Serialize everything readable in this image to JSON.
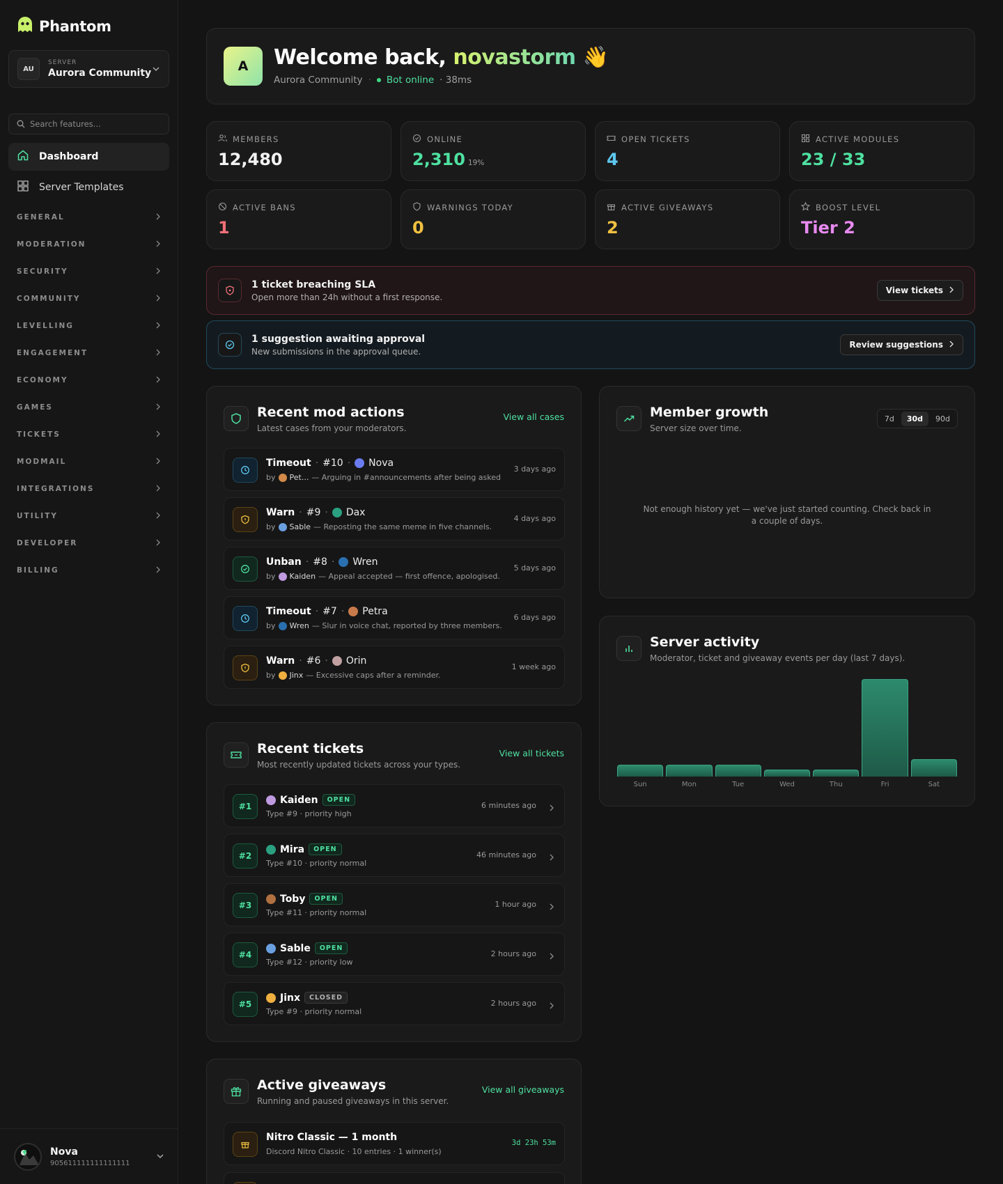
{
  "brand": {
    "name": "Phantom"
  },
  "server": {
    "badge": "AU",
    "caption": "SERVER",
    "name": "Aurora Community"
  },
  "search": {
    "placeholder": "Search features..."
  },
  "nav": {
    "items": [
      {
        "label": "Dashboard",
        "icon": "home-icon",
        "active": true
      },
      {
        "label": "Server Templates",
        "icon": "grid-icon",
        "active": false
      }
    ],
    "sections": [
      "GENERAL",
      "MODERATION",
      "SECURITY",
      "COMMUNITY",
      "LEVELLING",
      "ENGAGEMENT",
      "ECONOMY",
      "GAMES",
      "TICKETS",
      "MODMAIL",
      "INTEGRATIONS",
      "UTILITY",
      "DEVELOPER",
      "BILLING"
    ]
  },
  "user": {
    "name": "Nova",
    "id": "905611111111111111"
  },
  "welcome": {
    "avatar": "A",
    "greeting": "Welcome back,",
    "username": "novastorm",
    "emoji": "👋",
    "server": "Aurora Community",
    "status": "Bot online",
    "latency": "· 38ms"
  },
  "stats": [
    {
      "label": "MEMBERS",
      "value": "12,480",
      "extra": "",
      "icon": "users-icon",
      "color": "#f2f2f2"
    },
    {
      "label": "ONLINE",
      "value": "2,310",
      "extra": "19%",
      "icon": "online-icon",
      "color": "#4ee0a0"
    },
    {
      "label": "OPEN TICKETS",
      "value": "4",
      "extra": "",
      "icon": "ticket-icon",
      "color": "#5ec8f0"
    },
    {
      "label": "ACTIVE MODULES",
      "value": "23 / 33",
      "extra": "",
      "icon": "modules-icon",
      "color": "#4ee0a0"
    },
    {
      "label": "ACTIVE BANS",
      "value": "1",
      "extra": "",
      "icon": "ban-icon",
      "color": "#f07078"
    },
    {
      "label": "WARNINGS TODAY",
      "value": "0",
      "extra": "",
      "icon": "shield-icon",
      "color": "#f0c040"
    },
    {
      "label": "ACTIVE GIVEAWAYS",
      "value": "2",
      "extra": "",
      "icon": "gift-icon",
      "color": "#f0c040"
    },
    {
      "label": "BOOST LEVEL",
      "value": "Tier 2",
      "extra": "",
      "icon": "star-icon",
      "color": "#e88af0"
    }
  ],
  "alerts": {
    "sla": {
      "title": "1 ticket breaching SLA",
      "desc": "Open more than 24h without a first response.",
      "button": "View tickets"
    },
    "suggestion": {
      "title": "1 suggestion awaiting approval",
      "desc": "New submissions in the approval queue.",
      "button": "Review suggestions"
    }
  },
  "mod_actions": {
    "title": "Recent mod actions",
    "subtitle": "Latest cases from your moderators.",
    "link": "View all cases",
    "items": [
      {
        "action": "Timeout",
        "case": "#10",
        "target": "Nova",
        "mod": "Pet...",
        "reason": "— Arguing in #announcements after being asked t...",
        "time": "3 days ago",
        "kind": "timeout",
        "target_color": "#6a7cf0",
        "mod_color": "#d48a4a"
      },
      {
        "action": "Warn",
        "case": "#9",
        "target": "Dax",
        "mod": "Sable",
        "reason": "— Reposting the same meme in five channels.",
        "time": "4 days ago",
        "kind": "warn",
        "target_color": "#2aa080",
        "mod_color": "#6aa0e0"
      },
      {
        "action": "Unban",
        "case": "#8",
        "target": "Wren",
        "mod": "Kaiden",
        "reason": "— Appeal accepted — first offence, apologised.",
        "time": "5 days ago",
        "kind": "unban",
        "target_color": "#2a70b0",
        "mod_color": "#c09ae0"
      },
      {
        "action": "Timeout",
        "case": "#7",
        "target": "Petra",
        "mod": "Wren",
        "reason": "— Slur in voice chat, reported by three members.",
        "time": "6 days ago",
        "kind": "timeout",
        "target_color": "#c87a4a",
        "mod_color": "#2a70b0"
      },
      {
        "action": "Warn",
        "case": "#6",
        "target": "Orin",
        "mod": "Jinx",
        "reason": "— Excessive caps after a reminder.",
        "time": "1 week ago",
        "kind": "warn",
        "target_color": "#c0a0a0",
        "mod_color": "#f0b040"
      }
    ]
  },
  "tickets": {
    "title": "Recent tickets",
    "subtitle": "Most recently updated tickets across your types.",
    "link": "View all tickets",
    "items": [
      {
        "num": "#1",
        "user": "Kaiden",
        "status": "OPEN",
        "meta": "Type #9 · priority high",
        "time": "6 minutes ago",
        "color": "#c09ae0"
      },
      {
        "num": "#2",
        "user": "Mira",
        "status": "OPEN",
        "meta": "Type #10 · priority normal",
        "time": "46 minutes ago",
        "color": "#2aa080"
      },
      {
        "num": "#3",
        "user": "Toby",
        "status": "OPEN",
        "meta": "Type #11 · priority normal",
        "time": "1 hour ago",
        "color": "#b07040"
      },
      {
        "num": "#4",
        "user": "Sable",
        "status": "OPEN",
        "meta": "Type #12 · priority low",
        "time": "2 hours ago",
        "color": "#6aa0e0"
      },
      {
        "num": "#5",
        "user": "Jinx",
        "status": "CLOSED",
        "meta": "Type #9 · priority normal",
        "time": "2 hours ago",
        "color": "#f0b040"
      }
    ]
  },
  "giveaways": {
    "title": "Active giveaways",
    "subtitle": "Running and paused giveaways in this server.",
    "link": "View all giveaways",
    "items": [
      {
        "prize": "Nitro Classic — 1 month",
        "meta": "Discord Nitro Classic · 10 entries · 1 winner(s)",
        "time": "3d 23h 53m"
      }
    ]
  },
  "growth": {
    "title": "Member growth",
    "subtitle": "Server size over time.",
    "tabs": [
      "7d",
      "30d",
      "90d"
    ],
    "active_tab": "30d",
    "empty": "Not enough history yet — we've just started counting. Check back in a couple of days."
  },
  "activity": {
    "title": "Server activity",
    "subtitle": "Moderator, ticket and giveaway events per day (last 7 days)."
  },
  "chart_data": {
    "type": "bar",
    "categories": [
      "Sun",
      "Mon",
      "Tue",
      "Wed",
      "Thu",
      "Fri",
      "Sat"
    ],
    "values": [
      1.2,
      1.2,
      1.2,
      0.7,
      0.7,
      10,
      1.8
    ],
    "title": "Server activity",
    "xlabel": "",
    "ylabel": "",
    "ylim": [
      0,
      10
    ],
    "grid": false
  },
  "colors": {
    "accent": "#4ee0a0",
    "danger": "#f07078",
    "info": "#5ec8f0",
    "warn": "#f0c040"
  }
}
